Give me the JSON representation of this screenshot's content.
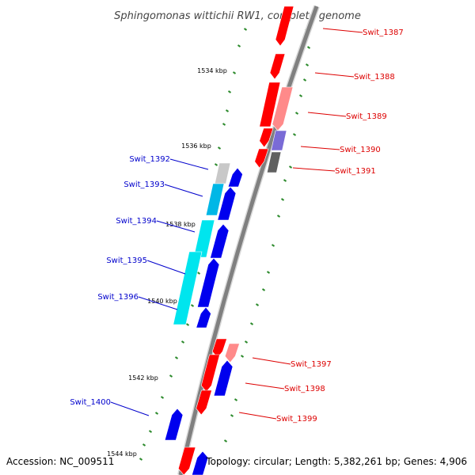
{
  "title": "Sphingomonas wittichii RW1, complete genome",
  "footer": {
    "accession": "Accession: NC_009511",
    "stats": "Topology: circular; Length: 5,382,261 bp; Genes: 4,906"
  },
  "colors": {
    "backbone": "#808080",
    "tick_green": "#2e8b2e",
    "label_red": "#dd0000",
    "label_blue": "#0000cc",
    "gene_red": "#ff0000",
    "gene_pink": "#ff8a8a",
    "gene_blue": "#0000ee",
    "gene_cyan": "#00e5ee",
    "gene_cyan_dark": "#00b7e6",
    "gene_grey": "#c8c8c8",
    "gene_dark_grey": "#606060",
    "gene_lilac": "#7a6bd6"
  },
  "kbp_labels": [
    "1534 kbp",
    "1536 kbp",
    "1538 kbp",
    "1540 kbp",
    "1542 kbp",
    "1544 kbp"
  ],
  "gene_labels": [
    {
      "text": "Swit_1387",
      "strand": "forward"
    },
    {
      "text": "Swit_1388",
      "strand": "forward"
    },
    {
      "text": "Swit_1389",
      "strand": "forward"
    },
    {
      "text": "Swit_1390",
      "strand": "forward"
    },
    {
      "text": "Swit_1391",
      "strand": "forward"
    },
    {
      "text": "Swit_1392",
      "strand": "reverse"
    },
    {
      "text": "Swit_1393",
      "strand": "reverse"
    },
    {
      "text": "Swit_1394",
      "strand": "reverse"
    },
    {
      "text": "Swit_1395",
      "strand": "reverse"
    },
    {
      "text": "Swit_1396",
      "strand": "reverse"
    },
    {
      "text": "Swit_1397",
      "strand": "forward"
    },
    {
      "text": "Swit_1398",
      "strand": "forward"
    },
    {
      "text": "Swit_1399",
      "strand": "forward"
    },
    {
      "text": "Swit_1400",
      "strand": "reverse"
    }
  ]
}
